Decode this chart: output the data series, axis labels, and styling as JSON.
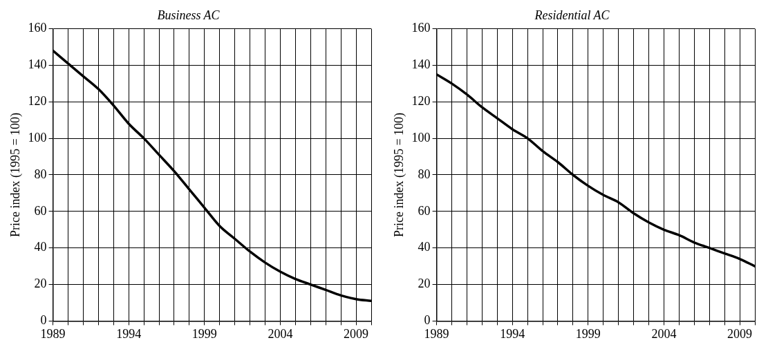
{
  "chart_data": [
    {
      "type": "line",
      "title": "Business AC",
      "ylabel": "Price index (1995 = 100)",
      "x": [
        1989,
        1990,
        1991,
        1992,
        1993,
        1994,
        1995,
        1996,
        1997,
        1998,
        1999,
        2000,
        2001,
        2002,
        2003,
        2004,
        2005,
        2006,
        2007,
        2008,
        2009,
        2010
      ],
      "series": [
        {
          "color": "#000000",
          "values": [
            148,
            141,
            134,
            127,
            118,
            108,
            100,
            91,
            82,
            72,
            62,
            52,
            45,
            38,
            32,
            27,
            23,
            20,
            17,
            14,
            12,
            11
          ]
        }
      ],
      "xlim": [
        1989,
        2010
      ],
      "xticks": [
        1989,
        {
          "value": 1990,
          "label": null
        },
        {
          "value": 1991,
          "label": null
        },
        {
          "value": 1992,
          "label": null
        },
        {
          "value": 1993,
          "label": null
        },
        1994,
        {
          "value": 1995,
          "label": null
        },
        {
          "value": 1996,
          "label": null
        },
        {
          "value": 1997,
          "label": null
        },
        {
          "value": 1998,
          "label": null
        },
        1999,
        {
          "value": 2000,
          "label": null
        },
        {
          "value": 2001,
          "label": null
        },
        {
          "value": 2002,
          "label": null
        },
        {
          "value": 2003,
          "label": null
        },
        2004,
        {
          "value": 2005,
          "label": null
        },
        {
          "value": 2006,
          "label": null
        },
        {
          "value": 2007,
          "label": null
        },
        {
          "value": 2008,
          "label": null
        },
        2009,
        {
          "value": 2010,
          "label": null
        }
      ],
      "ylim": [
        0,
        160
      ],
      "yticks": [
        0,
        20,
        40,
        60,
        80,
        100,
        120,
        140,
        160
      ],
      "grid": true,
      "marker": "none",
      "line_style": "solid"
    },
    {
      "type": "line",
      "title": "Residential AC",
      "ylabel": "Price index (1995 = 100)",
      "x": [
        1989,
        1990,
        1991,
        1992,
        1993,
        1994,
        1995,
        1996,
        1997,
        1998,
        1999,
        2000,
        2001,
        2002,
        2003,
        2004,
        2005,
        2006,
        2007,
        2008,
        2009,
        2010
      ],
      "series": [
        {
          "color": "#000000",
          "values": [
            135,
            130,
            124,
            117,
            111,
            105,
            100,
            93,
            87,
            80,
            74,
            69,
            65,
            59,
            54,
            50,
            47,
            43,
            40,
            37,
            34,
            30
          ]
        }
      ],
      "xlim": [
        1989,
        2010
      ],
      "xticks": [
        1989,
        {
          "value": 1990,
          "label": null
        },
        {
          "value": 1991,
          "label": null
        },
        {
          "value": 1992,
          "label": null
        },
        {
          "value": 1993,
          "label": null
        },
        1994,
        {
          "value": 1995,
          "label": null
        },
        {
          "value": 1996,
          "label": null
        },
        {
          "value": 1997,
          "label": null
        },
        {
          "value": 1998,
          "label": null
        },
        1999,
        {
          "value": 2000,
          "label": null
        },
        {
          "value": 2001,
          "label": null
        },
        {
          "value": 2002,
          "label": null
        },
        {
          "value": 2003,
          "label": null
        },
        2004,
        {
          "value": 2005,
          "label": null
        },
        {
          "value": 2006,
          "label": null
        },
        {
          "value": 2007,
          "label": null
        },
        {
          "value": 2008,
          "label": null
        },
        2009,
        {
          "value": 2010,
          "label": null
        }
      ],
      "ylim": [
        0,
        160
      ],
      "yticks": [
        0,
        20,
        40,
        60,
        80,
        100,
        120,
        140,
        160
      ],
      "grid": true,
      "marker": "none",
      "line_style": "solid"
    }
  ]
}
